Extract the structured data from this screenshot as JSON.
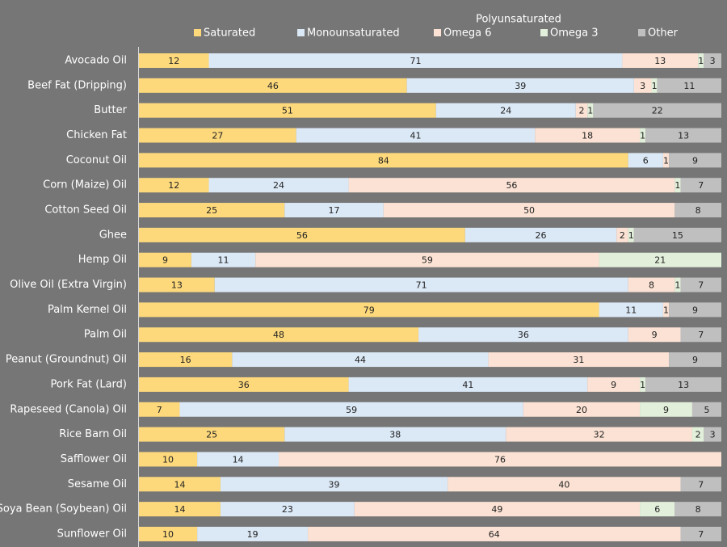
{
  "chart_data": {
    "type": "stacked-bar-horizontal",
    "legend_group_title": "Polyunsaturated",
    "categories": [
      "Avocado Oil",
      "Beef Fat (Dripping)",
      "Butter",
      "Chicken Fat",
      "Coconut Oil",
      "Corn (Maize) Oil",
      "Cotton Seed Oil",
      "Ghee",
      "Hemp Oil",
      "Olive Oil (Extra Virgin)",
      "Palm Kernel Oil",
      "Palm Oil",
      "Peanut (Groundnut) Oil",
      "Pork Fat (Lard)",
      "Rapeseed (Canola) Oil",
      "Rice Barn Oil",
      "Safflower Oil",
      "Sesame Oil",
      "Soya Bean (Soybean) Oil",
      "Sunflower Oil"
    ],
    "series": [
      {
        "name": "Saturated",
        "color": "#fdd97c",
        "values": [
          12,
          46,
          51,
          27,
          84,
          12,
          25,
          56,
          9,
          13,
          79,
          48,
          16,
          36,
          7,
          25,
          10,
          14,
          14,
          10
        ]
      },
      {
        "name": "Monounsaturated",
        "color": "#dbe8f6",
        "values": [
          71,
          39,
          24,
          41,
          6,
          24,
          17,
          26,
          11,
          71,
          11,
          36,
          44,
          41,
          59,
          38,
          14,
          39,
          23,
          19
        ]
      },
      {
        "name": "Omega 6",
        "color": "#fbe2d4",
        "values": [
          13,
          3,
          2,
          18,
          1,
          56,
          50,
          2,
          59,
          8,
          1,
          9,
          31,
          9,
          20,
          32,
          76,
          40,
          49,
          64
        ]
      },
      {
        "name": "Omega 3",
        "color": "#e2efda",
        "values": [
          1,
          1,
          1,
          1,
          null,
          1,
          null,
          1,
          21,
          1,
          null,
          null,
          null,
          1,
          9,
          2,
          null,
          null,
          6,
          null
        ]
      },
      {
        "name": "Other",
        "color": "#bfbfbf",
        "values": [
          3,
          11,
          22,
          13,
          9,
          7,
          8,
          15,
          null,
          7,
          9,
          7,
          9,
          13,
          5,
          3,
          null,
          7,
          8,
          7
        ]
      }
    ],
    "xlim": [
      0,
      100
    ]
  }
}
